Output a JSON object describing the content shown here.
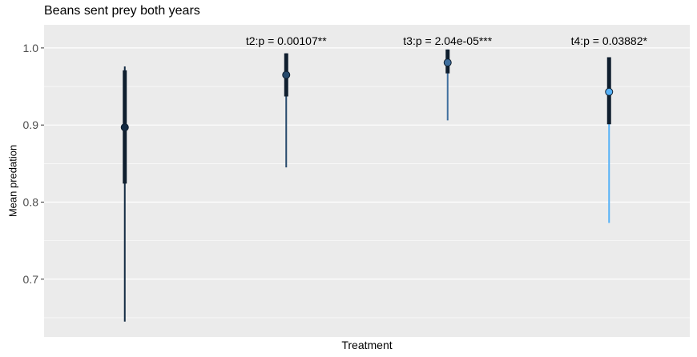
{
  "chart_data": {
    "type": "pointrange",
    "title": "Beans sent prey both years",
    "xlabel": "Treatment",
    "ylabel": "Mean predation",
    "ylim": [
      0.625,
      1.03
    ],
    "yticks": [
      0.7,
      0.8,
      0.9,
      1.0
    ],
    "ytick_labels": [
      "0.7",
      "0.8",
      "0.9",
      "1.0"
    ],
    "grid": true,
    "series": [
      {
        "mean": 0.897,
        "inner_low": 0.824,
        "inner_high": 0.971,
        "outer_low": 0.645,
        "outer_high": 0.976,
        "color": "#132b43",
        "annotation": ""
      },
      {
        "mean": 0.965,
        "inner_low": 0.937,
        "inner_high": 0.993,
        "outer_low": 0.845,
        "outer_high": 0.993,
        "color": "#274a6c",
        "annotation": "t2:p = 0.00107**"
      },
      {
        "mean": 0.981,
        "inner_low": 0.967,
        "inner_high": 0.998,
        "outer_low": 0.906,
        "outer_high": 0.998,
        "color": "#3f6f9e",
        "annotation": "t3:p = 2.04e-05***"
      },
      {
        "mean": 0.943,
        "inner_low": 0.901,
        "inner_high": 0.988,
        "outer_low": 0.773,
        "outer_high": 0.988,
        "color": "#56b1f7",
        "annotation": "t4:p = 0.03882*"
      }
    ]
  }
}
